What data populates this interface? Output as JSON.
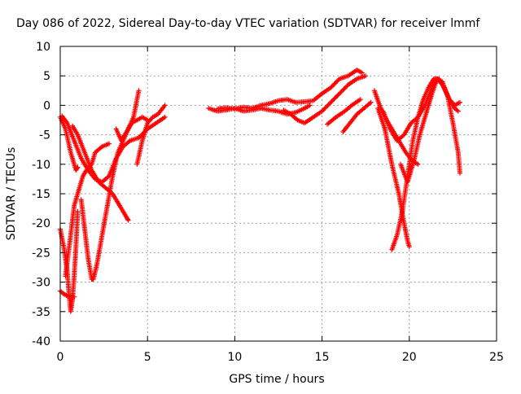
{
  "chart_data": {
    "type": "scatter",
    "title": "Day 086 of 2022, Sidereal Day-to-day VTEC variation (SDTVAR) for receiver lmmf",
    "xlabel": "GPS time / hours",
    "ylabel": "SDTVAR / TECUs",
    "xlim": [
      0,
      25
    ],
    "ylim": [
      -40,
      10
    ],
    "x_ticks": [
      0,
      5,
      10,
      15,
      20,
      25
    ],
    "y_ticks": [
      -40,
      -35,
      -30,
      -25,
      -20,
      -15,
      -10,
      -5,
      0,
      5,
      10
    ],
    "grid": true,
    "marker": "+",
    "series_color": "#ff0000",
    "traces": [
      [
        [
          0.0,
          -2
        ],
        [
          0.3,
          -4
        ],
        [
          0.6,
          -8
        ],
        [
          0.9,
          -11
        ],
        [
          1.0,
          -10.5
        ]
      ],
      [
        [
          0.1,
          -1.8
        ],
        [
          0.4,
          -3
        ],
        [
          0.8,
          -6
        ],
        [
          1.2,
          -9
        ],
        [
          1.6,
          -11
        ],
        [
          2.0,
          -12.5
        ],
        [
          2.4,
          -13
        ],
        [
          2.8,
          -12
        ],
        [
          3.2,
          -9
        ],
        [
          3.6,
          -7
        ],
        [
          4.0,
          -6
        ],
        [
          4.5,
          -5.5
        ],
        [
          5.0,
          -4
        ],
        [
          5.5,
          -3
        ],
        [
          6.0,
          -2
        ]
      ],
      [
        [
          0.7,
          -3.5
        ],
        [
          1.0,
          -5
        ],
        [
          1.4,
          -8
        ],
        [
          1.8,
          -11
        ],
        [
          2.2,
          -13
        ],
        [
          2.6,
          -14
        ],
        [
          3.0,
          -15
        ],
        [
          3.4,
          -17
        ],
        [
          3.8,
          -19
        ],
        [
          3.9,
          -19.5
        ]
      ],
      [
        [
          0.0,
          -21
        ],
        [
          0.2,
          -24
        ],
        [
          0.4,
          -28
        ],
        [
          0.5,
          -32
        ],
        [
          0.6,
          -35
        ],
        [
          0.7,
          -33
        ],
        [
          0.8,
          -29
        ],
        [
          0.9,
          -24
        ],
        [
          1.0,
          -18
        ]
      ],
      [
        [
          0.0,
          -31.5
        ],
        [
          0.2,
          -32
        ],
        [
          0.5,
          -32.5
        ],
        [
          0.8,
          -32.5
        ]
      ],
      [
        [
          0.3,
          -29
        ],
        [
          0.6,
          -22
        ],
        [
          0.8,
          -17
        ],
        [
          1.0,
          -15
        ],
        [
          1.3,
          -12
        ],
        [
          1.5,
          -11
        ],
        [
          1.8,
          -10
        ],
        [
          2.0,
          -8
        ],
        [
          2.4,
          -7
        ],
        [
          2.8,
          -6.5
        ]
      ],
      [
        [
          1.2,
          -16
        ],
        [
          1.4,
          -21
        ],
        [
          1.6,
          -26
        ],
        [
          1.8,
          -29.5
        ],
        [
          1.9,
          -29.5
        ],
        [
          2.1,
          -27
        ],
        [
          2.4,
          -22
        ],
        [
          2.7,
          -17
        ],
        [
          3.0,
          -12
        ],
        [
          3.3,
          -8
        ],
        [
          3.6,
          -6
        ],
        [
          3.9,
          -4
        ],
        [
          4.2,
          -2
        ],
        [
          4.5,
          2.5
        ]
      ],
      [
        [
          3.2,
          -4
        ],
        [
          3.5,
          -6
        ],
        [
          3.8,
          -4.5
        ],
        [
          4.1,
          -3
        ],
        [
          4.4,
          -2.5
        ],
        [
          4.7,
          -2
        ],
        [
          5.0,
          -2.5
        ]
      ],
      [
        [
          4.4,
          -10
        ],
        [
          4.7,
          -6
        ],
        [
          5.0,
          -3
        ],
        [
          5.3,
          -2
        ],
        [
          5.6,
          -1.5
        ],
        [
          6.0,
          0
        ]
      ],
      [
        [
          8.5,
          -0.5
        ],
        [
          9.0,
          -1.0
        ],
        [
          9.5,
          -0.8
        ],
        [
          10.0,
          -0.5
        ],
        [
          10.5,
          -1.0
        ],
        [
          11.0,
          -0.8
        ],
        [
          11.5,
          -0.5
        ],
        [
          12.0,
          -0.8
        ],
        [
          12.5,
          -1.0
        ],
        [
          13.0,
          -1.5
        ],
        [
          13.5,
          -1.2
        ],
        [
          14.0,
          -0.5
        ],
        [
          14.3,
          0
        ]
      ],
      [
        [
          9.0,
          -0.6
        ],
        [
          9.5,
          -0.4
        ],
        [
          10.0,
          -0.6
        ],
        [
          10.5,
          -0.3
        ],
        [
          11.0,
          -0.5
        ],
        [
          11.5,
          0.0
        ],
        [
          12.0,
          0.3
        ],
        [
          12.5,
          0.8
        ],
        [
          13.0,
          1.0
        ],
        [
          13.5,
          0.5
        ],
        [
          14.0,
          0.6
        ],
        [
          14.5,
          0.8
        ],
        [
          15.0,
          2.0
        ],
        [
          15.5,
          3.0
        ],
        [
          16.0,
          4.5
        ],
        [
          16.5,
          5.0
        ],
        [
          17.0,
          6.0
        ],
        [
          17.3,
          5.5
        ]
      ],
      [
        [
          12.8,
          -0.8
        ],
        [
          13.2,
          -1.5
        ],
        [
          13.6,
          -2.5
        ],
        [
          14.0,
          -3.0
        ],
        [
          14.5,
          -2.0
        ],
        [
          15.0,
          -1.0
        ],
        [
          15.5,
          0.5
        ],
        [
          16.0,
          2.0
        ],
        [
          16.5,
          3.5
        ],
        [
          17.0,
          4.5
        ],
        [
          17.5,
          5.0
        ]
      ],
      [
        [
          15.3,
          -3.2
        ],
        [
          15.8,
          -2.0
        ],
        [
          16.3,
          -1.0
        ],
        [
          16.7,
          0.0
        ],
        [
          17.2,
          1.0
        ]
      ],
      [
        [
          16.2,
          -4.5
        ],
        [
          16.6,
          -3.0
        ],
        [
          17.0,
          -1.5
        ],
        [
          17.4,
          -0.5
        ],
        [
          17.8,
          0.5
        ]
      ],
      [
        [
          18.0,
          2.5
        ],
        [
          18.3,
          0.0
        ],
        [
          18.6,
          -2.0
        ],
        [
          19.0,
          -4.0
        ],
        [
          19.4,
          -6.0
        ],
        [
          19.8,
          -8.0
        ],
        [
          20.2,
          -9.5
        ],
        [
          20.5,
          -10.0
        ]
      ],
      [
        [
          18.2,
          -0.5
        ],
        [
          18.6,
          -4.0
        ],
        [
          19.0,
          -10.0
        ],
        [
          19.4,
          -15.0
        ],
        [
          19.7,
          -20.0
        ],
        [
          19.9,
          -23.0
        ],
        [
          20.0,
          -24.0
        ]
      ],
      [
        [
          18.5,
          -1.0
        ],
        [
          18.9,
          -4.0
        ],
        [
          19.3,
          -6.0
        ],
        [
          19.7,
          -5.0
        ],
        [
          20.1,
          -3.0
        ],
        [
          20.5,
          -2.0
        ],
        [
          20.9,
          0.0
        ],
        [
          21.3,
          3.0
        ],
        [
          21.6,
          4.5
        ],
        [
          21.9,
          3.5
        ],
        [
          22.3,
          1.0
        ],
        [
          22.6,
          -0.5
        ],
        [
          22.8,
          -1.0
        ]
      ],
      [
        [
          19.0,
          -24.5
        ],
        [
          19.3,
          -22.0
        ],
        [
          19.6,
          -18.0
        ],
        [
          19.9,
          -12.0
        ],
        [
          20.2,
          -6.0
        ],
        [
          20.5,
          -2.0
        ],
        [
          20.8,
          1.0
        ],
        [
          21.1,
          3.0
        ],
        [
          21.4,
          4.5
        ],
        [
          21.7,
          4.5
        ],
        [
          22.0,
          3.0
        ],
        [
          22.3,
          1.0
        ],
        [
          22.6,
          0.0
        ],
        [
          22.9,
          0.5
        ]
      ],
      [
        [
          19.5,
          -10.0
        ],
        [
          19.9,
          -13.0
        ],
        [
          20.3,
          -9.0
        ],
        [
          20.6,
          -5.0
        ],
        [
          21.0,
          -1.0
        ],
        [
          21.3,
          2.0
        ],
        [
          21.6,
          4.5
        ],
        [
          21.9,
          4.0
        ],
        [
          22.2,
          1.5
        ],
        [
          22.5,
          -3.0
        ],
        [
          22.8,
          -8.0
        ],
        [
          22.9,
          -11.5
        ]
      ]
    ]
  }
}
